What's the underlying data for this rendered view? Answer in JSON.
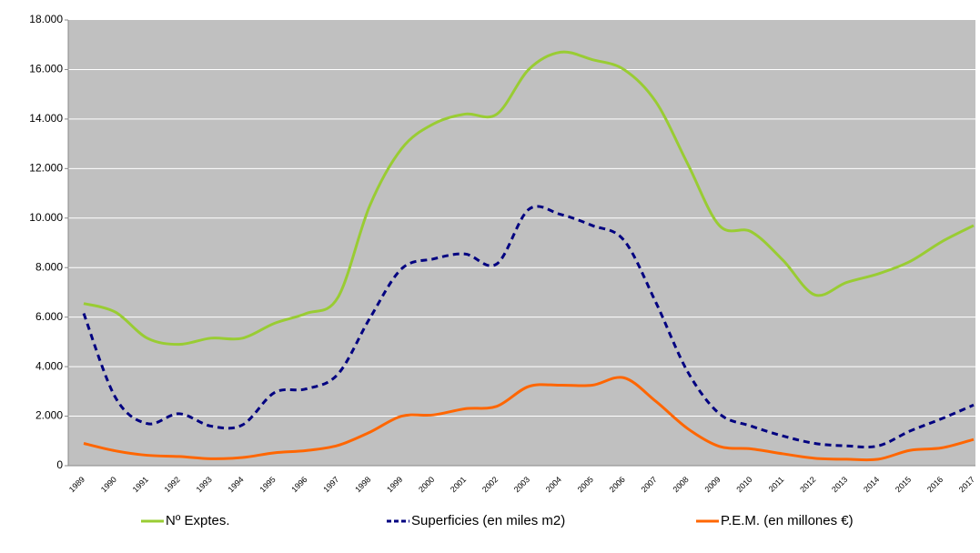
{
  "chart_data": {
    "type": "line",
    "categories": [
      "1989",
      "1990",
      "1991",
      "1992",
      "1993",
      "1994",
      "1995",
      "1996",
      "1997",
      "1998",
      "1999",
      "2000",
      "2001",
      "2002",
      "2003",
      "2004",
      "2005",
      "2006",
      "2007",
      "2008",
      "2009",
      "2010",
      "2011",
      "2012",
      "2013",
      "2014",
      "2015",
      "2016",
      "2017"
    ],
    "series": [
      {
        "name": "Nº Exptes.",
        "color": "#99cc33",
        "dashed": false,
        "values": [
          6550,
          6200,
          5150,
          4900,
          5150,
          5150,
          5750,
          6150,
          6800,
          10500,
          12800,
          13800,
          14200,
          14200,
          16000,
          16700,
          16400,
          16000,
          14700,
          12200,
          9700,
          9450,
          8300,
          6900,
          7400,
          7750,
          8250,
          9050,
          9700
        ]
      },
      {
        "name": "Superficies (en miles m2)",
        "color": "#000080",
        "dashed": true,
        "values": [
          6150,
          2750,
          1700,
          2100,
          1600,
          1650,
          2950,
          3100,
          3700,
          5950,
          7950,
          8350,
          8550,
          8150,
          10350,
          10150,
          9700,
          9100,
          6600,
          3800,
          2100,
          1600,
          1200,
          900,
          800,
          800,
          1400,
          1900,
          2450
        ]
      },
      {
        "name": "P.E.M. (en millones €)",
        "color": "#ff6600",
        "dashed": false,
        "values": [
          900,
          600,
          420,
          370,
          280,
          330,
          520,
          610,
          820,
          1350,
          2000,
          2050,
          2300,
          2400,
          3200,
          3250,
          3250,
          3550,
          2600,
          1500,
          780,
          680,
          480,
          300,
          260,
          260,
          620,
          720,
          1060
        ]
      }
    ],
    "ylim": [
      0,
      18000
    ],
    "yticks": [
      0,
      {
        "value": 2000,
        "label": "2.000"
      },
      {
        "value": 4000,
        "label": "4.000"
      },
      {
        "value": 6000,
        "label": "6.000"
      },
      {
        "value": 8000,
        "label": "8.000"
      },
      {
        "value": 10000,
        "label": "10.000"
      },
      {
        "value": 12000,
        "label": "12.000"
      },
      {
        "value": 14000,
        "label": "14.000"
      },
      {
        "value": 16000,
        "label": "16.000"
      },
      {
        "value": 18000,
        "label": "18.000"
      }
    ],
    "grid": true,
    "legend": "bottom",
    "background": "#c0c0c0"
  }
}
